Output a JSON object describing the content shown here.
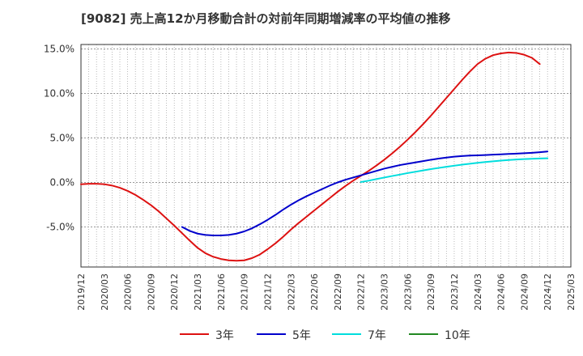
{
  "chart_data": {
    "type": "line",
    "title": "[9082]  売上高12か月移動合計の対前年同期増減率の平均値の推移",
    "xlabel": "",
    "ylabel": "",
    "x_ticks": [
      "2019/12",
      "2020/03",
      "2020/06",
      "2020/09",
      "2020/12",
      "2021/03",
      "2021/06",
      "2021/09",
      "2021/12",
      "2022/03",
      "2022/06",
      "2022/09",
      "2022/12",
      "2023/03",
      "2023/06",
      "2023/09",
      "2023/12",
      "2024/03",
      "2024/06",
      "2024/09",
      "2024/12",
      "2025/03"
    ],
    "y_ticks": [
      -5.0,
      0.0,
      5.0,
      10.0,
      15.0
    ],
    "y_tick_labels": [
      "-5.0%",
      "0.0%",
      "5.0%",
      "10.0%",
      "15.0%"
    ],
    "ylim": [
      -9.5,
      15.5
    ],
    "grid": true,
    "legend_position": "bottom",
    "series": [
      {
        "name": "3年",
        "color": "#dd1111",
        "x": [
          "2019/12",
          "2020/01",
          "2020/02",
          "2020/03",
          "2020/04",
          "2020/05",
          "2020/06",
          "2020/07",
          "2020/08",
          "2020/09",
          "2020/10",
          "2020/11",
          "2020/12",
          "2021/01",
          "2021/02",
          "2021/03",
          "2021/04",
          "2021/05",
          "2021/06",
          "2021/07",
          "2021/08",
          "2021/09",
          "2021/10",
          "2021/11",
          "2021/12",
          "2022/01",
          "2022/02",
          "2022/03",
          "2022/04",
          "2022/05",
          "2022/06",
          "2022/07",
          "2022/08",
          "2022/09",
          "2022/10",
          "2022/11",
          "2022/12",
          "2023/01",
          "2023/02",
          "2023/03",
          "2023/04",
          "2023/05",
          "2023/06",
          "2023/07",
          "2023/08",
          "2023/09",
          "2023/10",
          "2023/11",
          "2023/12",
          "2024/01",
          "2024/02",
          "2024/03",
          "2024/04",
          "2024/05",
          "2024/06",
          "2024/07",
          "2024/08",
          "2024/09",
          "2024/10",
          "2024/11",
          "2024/12"
        ],
        "values": [
          -0.2,
          -0.15,
          -0.15,
          -0.2,
          -0.35,
          -0.6,
          -0.95,
          -1.4,
          -1.95,
          -2.55,
          -3.25,
          -4.05,
          -4.85,
          -5.7,
          -6.55,
          -7.35,
          -7.95,
          -8.35,
          -8.6,
          -8.75,
          -8.8,
          -8.75,
          -8.5,
          -8.1,
          -7.5,
          -6.85,
          -6.1,
          -5.3,
          -4.55,
          -3.85,
          -3.15,
          -2.45,
          -1.75,
          -1.05,
          -0.4,
          0.2,
          0.75,
          1.3,
          1.9,
          2.55,
          3.25,
          4.0,
          4.8,
          5.65,
          6.55,
          7.5,
          8.5,
          9.5,
          10.5,
          11.5,
          12.45,
          13.3,
          13.9,
          14.3,
          14.5,
          14.6,
          14.55,
          14.35,
          14.0,
          13.3,
          null
        ],
        "note_x_axis": "monthly"
      },
      {
        "name": "5年",
        "color": "#0000cc",
        "x": [
          "2021/01",
          "2021/02",
          "2021/03",
          "2021/04",
          "2021/05",
          "2021/06",
          "2021/07",
          "2021/08",
          "2021/09",
          "2021/10",
          "2021/11",
          "2021/12",
          "2022/01",
          "2022/02",
          "2022/03",
          "2022/04",
          "2022/05",
          "2022/06",
          "2022/07",
          "2022/08",
          "2022/09",
          "2022/10",
          "2022/11",
          "2022/12",
          "2023/01",
          "2023/02",
          "2023/03",
          "2023/04",
          "2023/05",
          "2023/06",
          "2023/07",
          "2023/08",
          "2023/09",
          "2023/10",
          "2023/11",
          "2023/12",
          "2024/01",
          "2024/02",
          "2024/03",
          "2024/04",
          "2024/05",
          "2024/06",
          "2024/07",
          "2024/08",
          "2024/09",
          "2024/10",
          "2024/11",
          "2024/12"
        ],
        "values": [
          -5.0,
          -5.45,
          -5.75,
          -5.9,
          -5.95,
          -5.95,
          -5.9,
          -5.75,
          -5.5,
          -5.15,
          -4.7,
          -4.2,
          -3.65,
          -3.05,
          -2.5,
          -2.0,
          -1.55,
          -1.15,
          -0.75,
          -0.35,
          0.0,
          0.3,
          0.55,
          0.8,
          1.05,
          1.3,
          1.55,
          1.75,
          1.95,
          2.1,
          2.25,
          2.4,
          2.55,
          2.68,
          2.8,
          2.9,
          2.97,
          3.02,
          3.05,
          3.08,
          3.12,
          3.16,
          3.2,
          3.24,
          3.28,
          3.33,
          3.4,
          3.48
        ]
      },
      {
        "name": "7年",
        "color": "#00dddd",
        "x": [
          "2022/12",
          "2023/01",
          "2023/02",
          "2023/03",
          "2023/04",
          "2023/05",
          "2023/06",
          "2023/07",
          "2023/08",
          "2023/09",
          "2023/10",
          "2023/11",
          "2023/12",
          "2024/01",
          "2024/02",
          "2024/03",
          "2024/04",
          "2024/05",
          "2024/06",
          "2024/07",
          "2024/08",
          "2024/09",
          "2024/10",
          "2024/11",
          "2024/12"
        ],
        "values": [
          0.05,
          0.2,
          0.38,
          0.55,
          0.72,
          0.88,
          1.05,
          1.2,
          1.35,
          1.5,
          1.63,
          1.76,
          1.88,
          2.0,
          2.1,
          2.2,
          2.3,
          2.38,
          2.45,
          2.52,
          2.58,
          2.62,
          2.66,
          2.69,
          2.72
        ]
      },
      {
        "name": "10年",
        "color": "#228822",
        "x": [],
        "values": []
      }
    ]
  }
}
